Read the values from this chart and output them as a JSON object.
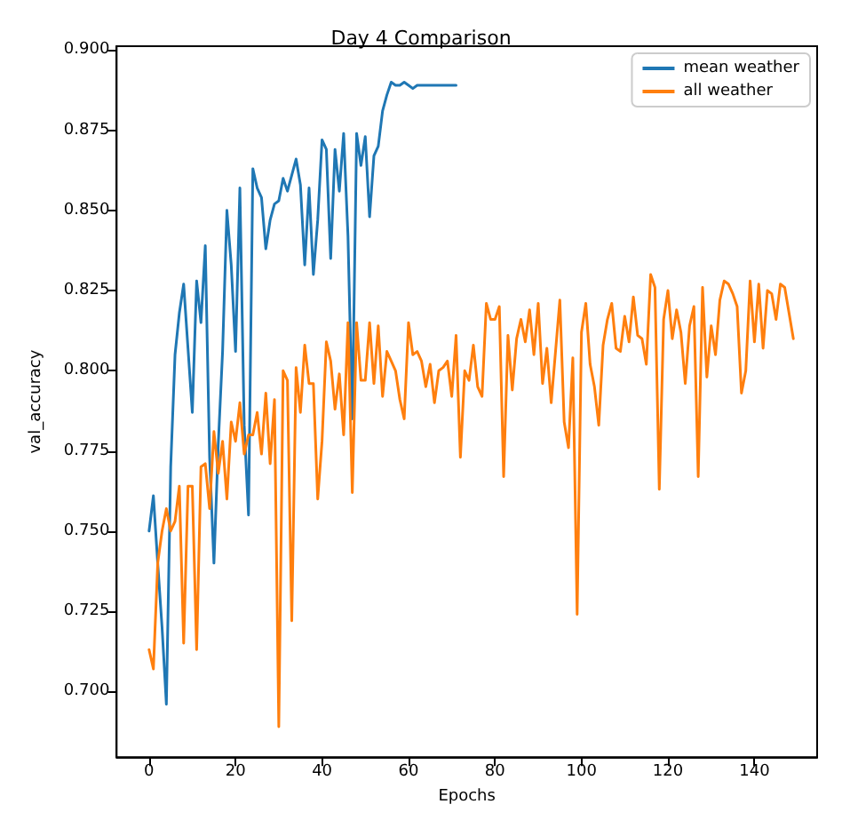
{
  "chart_data": {
    "type": "line",
    "title": "Day 4 Comparison",
    "xlabel": "Epochs",
    "ylabel": "val_accuracy",
    "x": [
      0,
      1,
      2,
      3,
      4,
      5,
      6,
      7,
      8,
      9,
      10,
      11,
      12,
      13,
      14,
      15,
      16,
      17,
      18,
      19,
      20,
      21,
      22,
      23,
      24,
      25,
      26,
      27,
      28,
      29,
      30,
      31,
      32,
      33,
      34,
      35,
      36,
      37,
      38,
      39,
      40,
      41,
      42,
      43,
      44,
      45,
      46,
      47,
      48,
      49,
      50,
      51,
      52,
      53,
      54,
      55,
      56,
      57,
      58,
      59,
      60,
      61,
      62,
      63,
      64,
      65,
      66,
      67,
      68,
      69,
      70,
      71,
      72,
      73,
      74,
      75,
      76,
      77,
      78,
      79,
      80,
      81,
      82,
      83,
      84,
      85,
      86,
      87,
      88,
      89,
      90,
      91,
      92,
      93,
      94,
      95,
      96,
      97,
      98,
      99,
      100,
      101,
      102,
      103,
      104,
      105,
      106,
      107,
      108,
      109,
      110,
      111,
      112,
      113,
      114,
      115,
      116,
      117,
      118,
      119,
      120,
      121,
      122,
      123,
      124,
      125,
      126,
      127,
      128,
      129,
      130,
      131,
      132,
      133,
      134,
      135,
      136,
      137,
      138,
      139,
      140,
      141,
      142,
      143,
      144,
      145,
      146,
      147,
      148,
      149
    ],
    "series": [
      {
        "name": "mean weather",
        "color": "#1f77b4",
        "x": [
          0,
          1,
          2,
          3,
          4,
          5,
          6,
          7,
          8,
          9,
          10,
          11,
          12,
          13,
          14,
          15,
          16,
          17,
          18,
          19,
          20,
          21,
          22,
          23,
          24,
          25,
          26,
          27,
          28,
          29,
          30,
          31,
          32,
          33,
          34,
          35,
          36,
          37,
          38,
          39,
          40,
          41,
          42,
          43,
          44,
          45,
          46,
          47,
          48,
          49,
          50,
          51,
          52,
          53,
          54,
          55,
          56,
          57,
          58,
          59,
          60,
          61,
          62,
          63,
          64,
          65,
          66,
          67,
          68,
          69,
          70,
          71
        ],
        "values": [
          0.75,
          0.761,
          0.74,
          0.72,
          0.696,
          0.77,
          0.805,
          0.818,
          0.827,
          0.807,
          0.787,
          0.828,
          0.815,
          0.839,
          0.773,
          0.74,
          0.777,
          0.806,
          0.85,
          0.833,
          0.806,
          0.857,
          0.783,
          0.755,
          0.863,
          0.857,
          0.854,
          0.838,
          0.847,
          0.852,
          0.853,
          0.86,
          0.856,
          0.861,
          0.866,
          0.858,
          0.833,
          0.857,
          0.83,
          0.847,
          0.872,
          0.869,
          0.835,
          0.869,
          0.856,
          0.874,
          0.842,
          0.785,
          0.874,
          0.864,
          0.873,
          0.848,
          0.867,
          0.87,
          0.881,
          0.886,
          0.89,
          0.889,
          0.889,
          0.89,
          0.889,
          0.888,
          0.889,
          0.889,
          0.889,
          0.889,
          0.889,
          0.889,
          0.889,
          0.889,
          0.889,
          0.889
        ]
      },
      {
        "name": "all weather",
        "color": "#ff7f0e",
        "values": [
          0.713,
          0.707,
          0.74,
          0.75,
          0.757,
          0.75,
          0.753,
          0.764,
          0.715,
          0.764,
          0.764,
          0.713,
          0.77,
          0.771,
          0.757,
          0.781,
          0.768,
          0.778,
          0.76,
          0.784,
          0.778,
          0.79,
          0.774,
          0.78,
          0.78,
          0.787,
          0.774,
          0.793,
          0.771,
          0.791,
          0.689,
          0.8,
          0.797,
          0.722,
          0.801,
          0.787,
          0.808,
          0.796,
          0.796,
          0.76,
          0.778,
          0.809,
          0.803,
          0.788,
          0.799,
          0.78,
          0.815,
          0.762,
          0.815,
          0.797,
          0.797,
          0.815,
          0.796,
          0.814,
          0.792,
          0.806,
          0.803,
          0.8,
          0.791,
          0.785,
          0.815,
          0.805,
          0.806,
          0.803,
          0.795,
          0.802,
          0.79,
          0.8,
          0.801,
          0.803,
          0.792,
          0.811,
          0.773,
          0.8,
          0.797,
          0.808,
          0.795,
          0.792,
          0.821,
          0.816,
          0.816,
          0.82,
          0.767,
          0.811,
          0.794,
          0.81,
          0.816,
          0.809,
          0.819,
          0.805,
          0.821,
          0.796,
          0.807,
          0.79,
          0.806,
          0.822,
          0.784,
          0.776,
          0.804,
          0.724,
          0.812,
          0.821,
          0.802,
          0.795,
          0.783,
          0.808,
          0.816,
          0.821,
          0.807,
          0.806,
          0.817,
          0.809,
          0.823,
          0.811,
          0.81,
          0.802,
          0.83,
          0.826,
          0.763,
          0.816,
          0.825,
          0.81,
          0.819,
          0.812,
          0.796,
          0.814,
          0.82,
          0.767,
          0.826,
          0.798,
          0.814,
          0.805,
          0.822,
          0.828,
          0.827,
          0.824,
          0.82,
          0.793,
          0.8,
          0.828,
          0.809,
          0.827,
          0.807,
          0.825,
          0.824,
          0.816,
          0.827,
          0.826,
          0.818,
          0.81
        ]
      }
    ],
    "xlim": [
      -7.5,
      154.5
    ],
    "ylim": [
      0.6795,
      0.9012
    ],
    "xticks": [
      0,
      20,
      40,
      60,
      80,
      100,
      120,
      140
    ],
    "yticks": [
      {
        "value": 0.7,
        "label": "0.700"
      },
      {
        "value": 0.725,
        "label": "0.725"
      },
      {
        "value": 0.75,
        "label": "0.750"
      },
      {
        "value": 0.775,
        "label": "0.775"
      },
      {
        "value": 0.8,
        "label": "0.800"
      },
      {
        "value": 0.825,
        "label": "0.825"
      },
      {
        "value": 0.85,
        "label": "0.850"
      },
      {
        "value": 0.875,
        "label": "0.875"
      },
      {
        "value": 0.9,
        "label": "0.900"
      }
    ],
    "legend": "top right",
    "grid": false,
    "marker": "none",
    "line_style": "solid"
  }
}
